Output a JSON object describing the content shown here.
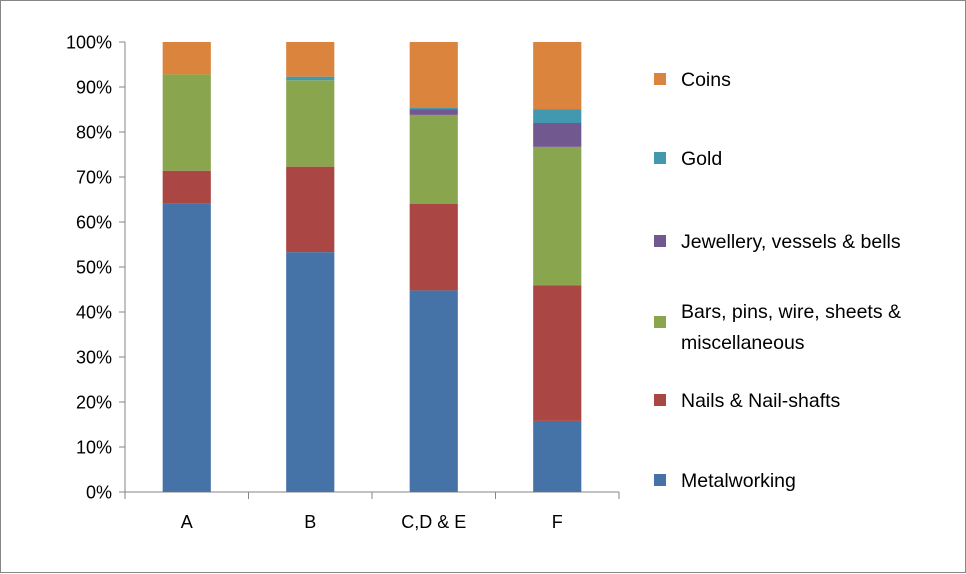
{
  "chart_data": {
    "type": "bar",
    "stacked": true,
    "percent": true,
    "title": "",
    "xlabel": "",
    "ylabel": "",
    "ylim": [
      0,
      100
    ],
    "y_ticks": [
      "0%",
      "10%",
      "20%",
      "30%",
      "40%",
      "50%",
      "60%",
      "70%",
      "80%",
      "90%",
      "100%"
    ],
    "grid": false,
    "legend_position": "right",
    "categories": [
      "A",
      "B",
      "C,D & E",
      "F"
    ],
    "series": [
      {
        "name": "Metalworking",
        "color": "#4572A7",
        "values": [
          64.2,
          53.3,
          44.8,
          15.8
        ]
      },
      {
        "name": "Nails & Nail-shafts",
        "color": "#AA4643",
        "values": [
          7.2,
          19.0,
          19.2,
          30.1
        ]
      },
      {
        "name": "Bars, pins, wire, sheets & miscellaneous",
        "legend_lines": [
          "Bars, pins, wire, sheets &",
          "miscellaneous"
        ],
        "color": "#89A54E",
        "values": [
          21.4,
          19.2,
          19.8,
          30.8
        ]
      },
      {
        "name": "Jewellery, vessels & bells",
        "color": "#71588F",
        "values": [
          0,
          0,
          1.2,
          5.3
        ]
      },
      {
        "name": "Gold",
        "color": "#4198AF",
        "values": [
          0,
          0.8,
          0.5,
          3.0
        ]
      },
      {
        "name": "Coins",
        "color": "#DB843D",
        "values": [
          7.2,
          7.7,
          14.5,
          15.0
        ]
      }
    ]
  }
}
